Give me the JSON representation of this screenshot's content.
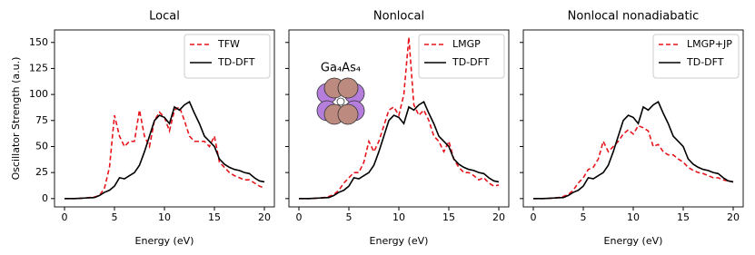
{
  "chart_data": [
    {
      "type": "line",
      "title": "Local",
      "xlabel": "Energy (eV)",
      "ylabel": "Oscillator Strength (a.u.)",
      "x": [
        0,
        0.5,
        1,
        1.5,
        2,
        2.5,
        3,
        3.5,
        4,
        4.5,
        5,
        5.5,
        6,
        6.5,
        7,
        7.5,
        8,
        8.5,
        9,
        9.5,
        10,
        10.5,
        11,
        11.5,
        12,
        12.5,
        13,
        13.5,
        14,
        14.5,
        15,
        15.5,
        16,
        16.5,
        17,
        17.5,
        18,
        18.5,
        19,
        19.5,
        20
      ],
      "series": [
        {
          "name": "TFW",
          "color": "#e8141c",
          "dashed": true,
          "values": [
            0,
            0,
            0,
            0.2,
            0.5,
            1,
            1.5,
            3,
            10,
            30,
            80,
            60,
            50,
            55,
            55,
            85,
            60,
            50,
            75,
            83,
            78,
            65,
            85,
            88,
            75,
            60,
            55,
            55,
            55,
            50,
            60,
            35,
            30,
            25,
            22,
            20,
            18,
            18,
            15,
            12,
            10
          ]
        },
        {
          "name": "TD-DFT",
          "color": "#000000",
          "dashed": false,
          "values": [
            0,
            0,
            0,
            0.2,
            0.5,
            0.8,
            1,
            3,
            6,
            8,
            12,
            20,
            19,
            22,
            25,
            32,
            45,
            60,
            75,
            80,
            78,
            72,
            88,
            85,
            90,
            93,
            82,
            72,
            60,
            55,
            50,
            38,
            33,
            30,
            28,
            27,
            25,
            24,
            20,
            17,
            16
          ]
        }
      ],
      "xlim": [
        -1,
        21
      ],
      "ylim": [
        -8,
        162
      ],
      "xticks": [
        0,
        5,
        10,
        15,
        20
      ],
      "yticks": [
        0,
        25,
        50,
        75,
        100,
        125,
        150
      ],
      "legend": "upper right"
    },
    {
      "type": "line",
      "title": "Nonlocal",
      "xlabel": "Energy (eV)",
      "annotation": "Ga₄As₄",
      "x": [
        0,
        0.5,
        1,
        1.5,
        2,
        2.5,
        3,
        3.5,
        4,
        4.5,
        5,
        5.5,
        6,
        6.5,
        7,
        7.5,
        8,
        8.5,
        9,
        9.5,
        10,
        10.5,
        11,
        11.5,
        12,
        12.5,
        13,
        13.5,
        14,
        14.5,
        15,
        15.5,
        16,
        16.5,
        17,
        17.5,
        18,
        18.5,
        19,
        19.5,
        20
      ],
      "series": [
        {
          "name": "LMGP",
          "color": "#e8141c",
          "dashed": true,
          "values": [
            0,
            0,
            0,
            0.2,
            0.5,
            1,
            2,
            4,
            8,
            15,
            20,
            25,
            25,
            35,
            55,
            45,
            55,
            70,
            85,
            88,
            80,
            100,
            155,
            90,
            80,
            85,
            75,
            60,
            55,
            45,
            55,
            38,
            30,
            25,
            25,
            22,
            18,
            20,
            15,
            12,
            13
          ]
        },
        {
          "name": "TD-DFT",
          "color": "#000000",
          "dashed": false,
          "values": [
            0,
            0,
            0,
            0.2,
            0.5,
            0.8,
            1,
            3,
            6,
            8,
            12,
            20,
            19,
            22,
            25,
            32,
            45,
            60,
            75,
            80,
            78,
            72,
            88,
            85,
            90,
            93,
            82,
            72,
            60,
            55,
            50,
            38,
            33,
            30,
            28,
            27,
            25,
            24,
            20,
            17,
            16
          ]
        }
      ],
      "xlim": [
        -1,
        21
      ],
      "ylim": [
        -8,
        162
      ],
      "xticks": [
        0,
        5,
        10,
        15,
        20
      ],
      "legend": "upper right"
    },
    {
      "type": "line",
      "title": "Nonlocal nonadiabatic",
      "xlabel": "Energy (eV)",
      "x": [
        0,
        0.5,
        1,
        1.5,
        2,
        2.5,
        3,
        3.5,
        4,
        4.5,
        5,
        5.5,
        6,
        6.5,
        7,
        7.5,
        8,
        8.5,
        9,
        9.5,
        10,
        10.5,
        11,
        11.5,
        12,
        12.5,
        13,
        13.5,
        14,
        14.5,
        15,
        15.5,
        16,
        16.5,
        17,
        17.5,
        18,
        18.5,
        19,
        19.5,
        20
      ],
      "series": [
        {
          "name": "LMGP+JP",
          "color": "#e8141c",
          "dashed": true,
          "values": [
            0,
            0,
            0,
            0.2,
            0.5,
            1,
            2,
            4,
            8,
            15,
            20,
            28,
            30,
            38,
            55,
            45,
            50,
            55,
            62,
            66,
            62,
            70,
            68,
            65,
            50,
            52,
            45,
            42,
            42,
            38,
            35,
            30,
            27,
            25,
            24,
            22,
            20,
            20,
            18,
            17,
            16
          ]
        },
        {
          "name": "TD-DFT",
          "color": "#000000",
          "dashed": false,
          "values": [
            0,
            0,
            0,
            0.2,
            0.5,
            0.8,
            1,
            3,
            6,
            8,
            12,
            20,
            19,
            22,
            25,
            32,
            45,
            60,
            75,
            80,
            78,
            72,
            88,
            85,
            90,
            93,
            82,
            72,
            60,
            55,
            50,
            38,
            33,
            30,
            28,
            27,
            25,
            24,
            20,
            17,
            16
          ]
        }
      ],
      "xlim": [
        -1,
        21
      ],
      "ylim": [
        -8,
        162
      ],
      "xticks": [
        0,
        5,
        10,
        15,
        20
      ],
      "legend": "upper right"
    }
  ]
}
